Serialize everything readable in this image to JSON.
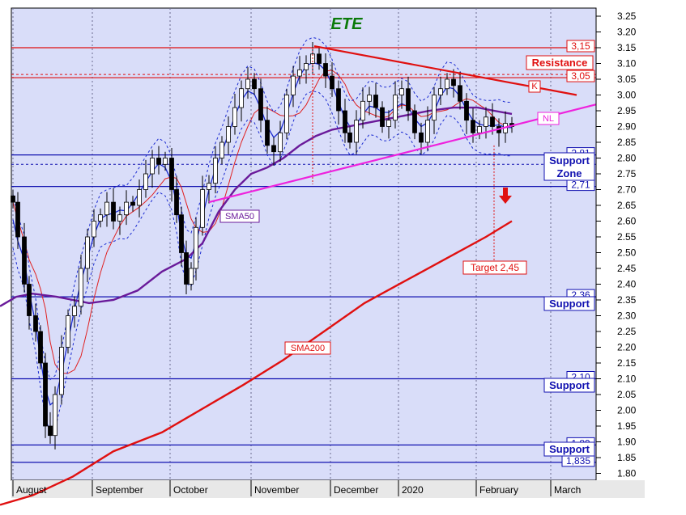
{
  "chart_data": {
    "type": "candlestick",
    "title": "ETE",
    "ylim": [
      1.77,
      3.27
    ],
    "yticks": [
      3.25,
      3.2,
      3.15,
      3.1,
      3.05,
      3.0,
      2.95,
      2.9,
      2.85,
      2.8,
      2.75,
      2.7,
      2.65,
      2.6,
      2.55,
      2.5,
      2.45,
      2.4,
      2.35,
      2.3,
      2.25,
      2.2,
      2.15,
      2.1,
      2.05,
      2.0,
      1.95,
      1.9,
      1.85,
      1.8
    ],
    "x_labels": [
      "August",
      "September",
      "October",
      "November",
      "December",
      "2020",
      "February",
      "March"
    ],
    "grid": true,
    "horizontal_levels": [
      {
        "value": 3.15,
        "label": "3,15",
        "color": "#e01010"
      },
      {
        "value": 3.055,
        "label": "3,05",
        "color": "#e01010"
      },
      {
        "value": 2.81,
        "label": "2,81",
        "color": "#1010b0"
      },
      {
        "value": 2.71,
        "label": "2,71",
        "color": "#1010b0"
      },
      {
        "value": 2.36,
        "label": "2,36",
        "color": "#1010b0"
      },
      {
        "value": 2.1,
        "label": "2,10",
        "color": "#1010b0"
      },
      {
        "value": 1.89,
        "label": "1,89",
        "color": "#1010b0"
      },
      {
        "value": 1.835,
        "label": "1,835",
        "color": "#1010b0"
      }
    ],
    "annotations": {
      "resistance": "Resistance",
      "k": "K",
      "nl": "NL",
      "support_zone_1": "Support",
      "support_zone_2": "Zone",
      "support_a": "Support",
      "support_b": "Support",
      "support_c": "Support",
      "sma50": "SMA50",
      "sma200": "SMA200",
      "target": "Target 2,45"
    },
    "series": [
      {
        "name": "SMA200",
        "values": [
          [
            0,
            1.7
          ],
          [
            40,
            1.73
          ],
          [
            90,
            1.79
          ],
          [
            140,
            1.87
          ],
          [
            200,
            1.93
          ],
          [
            260,
            2.02
          ],
          [
            300,
            2.08
          ],
          [
            350,
            2.16
          ],
          [
            400,
            2.25
          ],
          [
            450,
            2.34
          ],
          [
            500,
            2.41
          ],
          [
            550,
            2.48
          ],
          [
            600,
            2.55
          ],
          [
            632,
            2.6
          ]
        ]
      },
      {
        "name": "SMA50",
        "values": [
          [
            0,
            2.33
          ],
          [
            20,
            2.36
          ],
          [
            40,
            2.37
          ],
          [
            70,
            2.36
          ],
          [
            90,
            2.35
          ],
          [
            110,
            2.34
          ],
          [
            140,
            2.35
          ],
          [
            170,
            2.38
          ],
          [
            200,
            2.44
          ],
          [
            230,
            2.48
          ],
          [
            250,
            2.53
          ],
          [
            270,
            2.63
          ],
          [
            290,
            2.7
          ],
          [
            310,
            2.75
          ],
          [
            330,
            2.77
          ],
          [
            350,
            2.8
          ],
          [
            370,
            2.84
          ],
          [
            390,
            2.87
          ],
          [
            410,
            2.89
          ],
          [
            430,
            2.9
          ],
          [
            450,
            2.91
          ],
          [
            470,
            2.92
          ],
          [
            490,
            2.93
          ],
          [
            510,
            2.94
          ],
          [
            530,
            2.95
          ],
          [
            560,
            2.96
          ],
          [
            590,
            2.96
          ],
          [
            610,
            2.95
          ],
          [
            632,
            2.94
          ]
        ]
      }
    ]
  }
}
